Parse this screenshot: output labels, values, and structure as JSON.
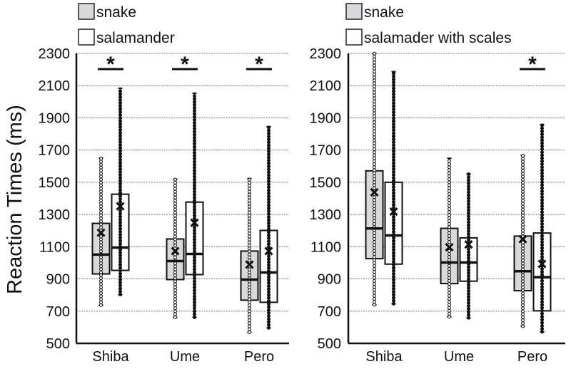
{
  "chart_data": [
    {
      "type": "box",
      "ylabel": "Reaction Times (ms)",
      "ylim": [
        500,
        2300
      ],
      "yticks": [
        500,
        700,
        900,
        1100,
        1300,
        1500,
        1700,
        1900,
        2100,
        2300
      ],
      "grid": true,
      "legend_placement": "top",
      "categories": [
        "Shiba",
        "Ume",
        "Pero"
      ],
      "significance": [
        true,
        true,
        true
      ],
      "significance_mark": "*",
      "series": [
        {
          "name": "snake",
          "color": "#d9d9d9",
          "boxes": [
            {
              "min": 737,
              "q1": 931,
              "median": 1051,
              "q3": 1245,
              "max": 1651,
              "mean": 1187
            },
            {
              "min": 662,
              "q1": 896,
              "median": 1011,
              "q3": 1148,
              "max": 1519,
              "mean": 1073
            },
            {
              "min": 569,
              "q1": 768,
              "median": 896,
              "q3": 1073,
              "max": 1523,
              "mean": 989
            }
          ]
        },
        {
          "name": "salamander",
          "color": "#ffffff",
          "boxes": [
            {
              "min": 803,
              "q1": 953,
              "median": 1095,
              "q3": 1426,
              "max": 2084,
              "mean": 1351
            },
            {
              "min": 662,
              "q1": 927,
              "median": 1055,
              "q3": 1377,
              "max": 2053,
              "mean": 1249
            },
            {
              "min": 596,
              "q1": 755,
              "median": 940,
              "q3": 1201,
              "max": 1845,
              "mean": 1073
            }
          ]
        }
      ]
    },
    {
      "type": "box",
      "ylim": [
        500,
        2300
      ],
      "yticks": [
        500,
        700,
        900,
        1100,
        1300,
        1500,
        1700,
        1900,
        2100,
        2300
      ],
      "grid": true,
      "legend_placement": "top",
      "categories": [
        "Shiba",
        "Ume",
        "Pero"
      ],
      "significance": [
        false,
        false,
        true
      ],
      "significance_mark": "*",
      "series": [
        {
          "name": "snake",
          "color": "#d9d9d9",
          "boxes": [
            {
              "min": 739,
              "q1": 1026,
              "median": 1213,
              "q3": 1571,
              "max": 2300,
              "mean": 1438
            },
            {
              "min": 665,
              "q1": 871,
              "median": 1002,
              "q3": 1214,
              "max": 1649,
              "mean": 1097
            },
            {
              "min": 606,
              "q1": 827,
              "median": 948,
              "q3": 1166,
              "max": 1667,
              "mean": 1147
            }
          ]
        },
        {
          "name": "salamader with scales",
          "color": "#ffffff",
          "boxes": [
            {
              "min": 746,
              "q1": 992,
              "median": 1170,
              "q3": 1500,
              "max": 2187,
              "mean": 1318
            },
            {
              "min": 658,
              "q1": 886,
              "median": 1002,
              "q3": 1155,
              "max": 1553,
              "mean": 1114
            },
            {
              "min": 572,
              "q1": 702,
              "median": 911,
              "q3": 1185,
              "max": 1858,
              "mean": 993
            }
          ]
        }
      ]
    }
  ]
}
